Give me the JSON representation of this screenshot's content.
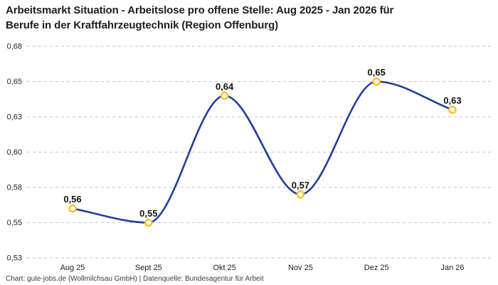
{
  "chart_data": {
    "type": "line",
    "title": "Arbeitsmarkt Situation - Arbeitslose pro offene Stelle: Aug 2025 - Jan 2026 für Berufe in der Kraftfahrzeugtechnik (Region Offenburg)",
    "credit": "Chart: gute-jobs.de (Wollmilchsau GmbH) | Datenquelle: Bundesagentur für Arbeit",
    "categories": [
      "Aug 25",
      "Sept 25",
      "Okt 25",
      "Nov 25",
      "Dez 25",
      "Jan 26"
    ],
    "series": [
      {
        "name": "Arbeitslose pro offene Stelle",
        "values": [
          0.56,
          0.55,
          0.64,
          0.57,
          0.65,
          0.63
        ],
        "labels": [
          "0,56",
          "0,55",
          "0,64",
          "0,57",
          "0,65",
          "0,63"
        ]
      }
    ],
    "xlabel": "",
    "ylabel": "",
    "ylim": [
      0.525,
      0.675
    ],
    "yticks": {
      "values": [
        0.675,
        0.65,
        0.625,
        0.6,
        0.575,
        0.55,
        0.525
      ],
      "labels": [
        "0,68",
        "0,65",
        "0,63",
        "0,60",
        "0,58",
        "0,55",
        "0,53"
      ]
    },
    "grid": "horizontal-dashed",
    "legend": "none",
    "curve": "smooth-monotone",
    "decimal_separator": ",",
    "colors": {
      "line": "#21409a",
      "marker_stroke": "#fbc02d",
      "marker_fill": "#ffffff",
      "grid": "#c6c6c6",
      "tick_text": "#222222",
      "point_label": "#111111"
    }
  }
}
